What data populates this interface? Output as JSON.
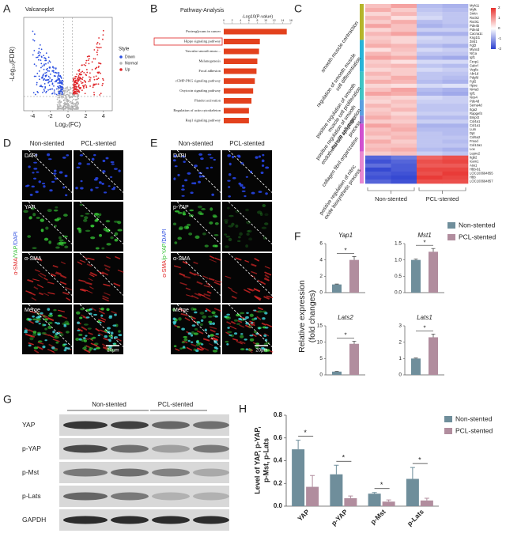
{
  "panel_labels": [
    "A",
    "B",
    "C",
    "D",
    "E",
    "F",
    "G",
    "H"
  ],
  "volcano": {
    "type": "scatter",
    "title": "Valcanoplot",
    "xlabel": "Log₂(FC)",
    "ylabel": "-Log₁₀(FDR)",
    "xlim": [
      -5,
      5
    ],
    "xticks": [
      -4,
      -2,
      0,
      2,
      4
    ],
    "legend_title": "Style",
    "series": [
      {
        "name": "Down",
        "color": "#2b4fe0"
      },
      {
        "name": "Normal",
        "color": "#b5b5b5"
      },
      {
        "name": "Up",
        "color": "#e0262a"
      }
    ]
  },
  "pathway": {
    "type": "bar",
    "title": "Pathway-Analysis",
    "xlabel": "-Log10(P-value)",
    "categories": [
      "Proteoglycans in cancer",
      "Hippo signaling pathway",
      "Vascular smooth musc...",
      "Melanogenesis",
      "Focal adhesion",
      "cGMP-PKG signaling pathway",
      "Oxytocin signaling pathway",
      "Platelet activation",
      "Regulation of actin cytoskeleton",
      "Rap1 signaling pathway"
    ],
    "values": [
      15,
      8.6,
      8.4,
      8.0,
      7.8,
      7.4,
      7.0,
      6.6,
      6.0,
      6.0
    ],
    "color": "#e3411d",
    "xlim": [
      0,
      16
    ],
    "xticks": [
      0,
      2,
      4,
      6,
      8,
      10,
      12,
      14,
      16
    ],
    "highlight": 1
  },
  "heatmap": {
    "type": "heatmap",
    "columns": [
      "Non-stented",
      "PCL-stented"
    ],
    "zlim": [
      -2,
      2
    ],
    "colorbar_ticks": [
      2,
      1,
      0,
      -1,
      -2
    ],
    "colors": [
      "#2b3fd0",
      "#ffffff",
      "#e8312d"
    ],
    "groups": [
      {
        "label": [
          "smooth muscle contraction"
        ],
        "color": "#b5b52a",
        "genes": [
          "Myh11",
          "Mylk",
          "Smtn",
          "Rock2",
          "Rock1",
          "Pde4b",
          "Pde4d",
          "Cacna1c",
          "Kng1l1"
        ],
        "values": [
          [
            0.6,
            0.9,
            -0.7,
            -0.8
          ],
          [
            0.8,
            0.5,
            -0.6,
            -0.7
          ],
          [
            0.4,
            0.7,
            -0.5,
            -0.6
          ],
          [
            0.7,
            0.3,
            -0.4,
            -0.6
          ],
          [
            0.5,
            0.8,
            -0.7,
            -0.6
          ],
          [
            0.9,
            0.6,
            -0.8,
            -0.7
          ],
          [
            0.4,
            0.6,
            -0.5,
            -0.5
          ],
          [
            0.7,
            0.9,
            -0.8,
            -0.8
          ],
          [
            0.5,
            0.4,
            -0.4,
            -0.5
          ]
        ]
      },
      {
        "label": [
          "regulation of smooth muscle",
          "cell differentiation"
        ],
        "color": "#28b4d8",
        "genes": [
          "Zeb1",
          "Fgf2",
          "Myocd",
          "Nr1a",
          "Igf1",
          "Fzxp1",
          "Calcrl",
          "Vegfa"
        ],
        "values": [
          [
            0.6,
            0.4,
            -0.5,
            -0.5
          ],
          [
            0.8,
            0.7,
            -0.7,
            -0.8
          ],
          [
            0.3,
            0.6,
            -0.4,
            -0.5
          ],
          [
            0.7,
            0.5,
            -0.6,
            -0.6
          ],
          [
            0.9,
            0.8,
            -0.8,
            -0.9
          ],
          [
            0.5,
            0.3,
            -0.4,
            -0.4
          ],
          [
            0.6,
            0.7,
            -0.6,
            -0.7
          ],
          [
            0.4,
            0.5,
            -0.4,
            -0.5
          ]
        ]
      },
      {
        "label": [
          "positive regulation of smooth",
          "muscle cell proliferation"
        ],
        "color": "#3fc4c4",
        "genes": [
          "Abr1d",
          "Pdgfd",
          "Fgf2",
          "Hpse",
          "Nr4a3",
          "Igf1",
          "Nos4"
        ],
        "values": [
          [
            0.7,
            0.5,
            -0.6,
            -0.6
          ],
          [
            0.5,
            0.8,
            -0.6,
            -0.7
          ],
          [
            0.8,
            0.7,
            -0.7,
            -0.8
          ],
          [
            0.4,
            0.3,
            -0.4,
            -0.3
          ],
          [
            0.6,
            0.9,
            -0.7,
            -0.8
          ],
          [
            0.9,
            0.8,
            -0.8,
            -0.9
          ],
          [
            0.5,
            0.4,
            -0.4,
            -0.5
          ]
        ]
      },
      {
        "label": [
          "positive regulation of smooth",
          "muscle cell migration"
        ],
        "color": "#5aa0e0",
        "genes": [
          "Pde4d",
          "Sema4d",
          "Itga2",
          "Rapgef4"
        ],
        "values": [
          [
            0.4,
            0.6,
            -0.5,
            -0.5
          ],
          [
            0.7,
            0.5,
            -0.6,
            -0.6
          ],
          [
            0.5,
            0.7,
            -0.6,
            -0.6
          ],
          [
            0.6,
            0.4,
            -0.5,
            -0.5
          ]
        ]
      },
      {
        "label": [
          "endothelial cell apoptotic",
          "process"
        ],
        "color": "#8a78d8",
        "genes": [
          "Bmpr2",
          "Col4a1"
        ],
        "values": [
          [
            0.8,
            0.6,
            -0.7,
            -0.7
          ],
          [
            0.5,
            0.5,
            -0.5,
            -0.5
          ]
        ]
      },
      {
        "label": [
          "collagen fibril organization"
        ],
        "color": "#d050d0",
        "genes": [
          "Col1a1",
          "Lum",
          "Dpt",
          "Col5a2",
          "Fmod",
          "Col12a1",
          "Lox"
        ],
        "values": [
          [
            0.9,
            0.7,
            -0.8,
            -0.8
          ],
          [
            0.6,
            0.8,
            -0.7,
            -0.7
          ],
          [
            0.7,
            0.6,
            -0.6,
            -0.7
          ],
          [
            0.5,
            0.7,
            -0.6,
            -0.6
          ],
          [
            0.8,
            0.5,
            -0.6,
            -0.7
          ],
          [
            0.6,
            0.6,
            -0.6,
            -0.6
          ],
          [
            0.7,
            0.8,
            -0.7,
            -0.8
          ]
        ]
      },
      {
        "label": [
          "positive regulation of nitric",
          "oxide biosynthetic process"
        ],
        "color": "#e888d0",
        "genes": [
          "Lepre2",
          "Itgb2",
          "Icam1",
          "Ass1",
          "Hbb-b1",
          "LOC103694855",
          "Hbb",
          "LOC103694857"
        ],
        "values": [
          [
            0.5,
            0.6,
            -0.5,
            -0.6
          ],
          [
            -1.6,
            -1.4,
            1.5,
            1.7
          ],
          [
            -1.8,
            -1.6,
            1.7,
            1.8
          ],
          [
            -1.5,
            -1.7,
            1.6,
            1.6
          ],
          [
            -1.9,
            -1.7,
            1.8,
            1.8
          ],
          [
            -1.7,
            -1.8,
            1.7,
            1.9
          ],
          [
            -1.8,
            -1.9,
            1.9,
            1.8
          ],
          [
            -1.6,
            -1.8,
            1.7,
            1.7
          ]
        ]
      }
    ]
  },
  "stain_d": {
    "columns": [
      "Non-stented",
      "PCL-stented"
    ],
    "rows": [
      "DAPI",
      "YAP",
      "α-SMA",
      "Merge"
    ],
    "side_label": [
      "α-SMA",
      "/YAP",
      "/DAPI"
    ],
    "side_colors": [
      "#e02020",
      "#30c030",
      "#3050e0"
    ],
    "scale_bar": "20μm"
  },
  "stain_e": {
    "columns": [
      "Non-stented",
      "PCL-stented"
    ],
    "rows": [
      "DAPI",
      "p-YAP",
      "α-SMA",
      "Merge"
    ],
    "side_label": [
      "α-SMA",
      "/p-YAP",
      "/DAPI"
    ],
    "side_colors": [
      "#e02020",
      "#30c030",
      "#3050e0"
    ],
    "scale_bar": "20μm"
  },
  "expression": {
    "type": "bar",
    "ylabel": [
      "Relative expression",
      "(fold changes)"
    ],
    "series": [
      {
        "name": "Non-stented",
        "color": "#6f8e9b"
      },
      {
        "name": "PCL-stented",
        "color": "#b18d9e"
      }
    ],
    "panels": [
      {
        "title": "Yap1",
        "values": [
          1,
          4.0
        ],
        "errors": [
          0.05,
          0.4
        ],
        "ylim": [
          0,
          6
        ],
        "yticks": [
          0,
          2,
          4,
          6
        ],
        "annotation": "*"
      },
      {
        "title": "Mst1",
        "values": [
          1.0,
          1.25
        ],
        "errors": [
          0.03,
          0.1
        ],
        "ylim": [
          0,
          1.5
        ],
        "yticks": [
          {
            "value": 0,
            "label": "0.0"
          },
          {
            "value": 0.5,
            "label": "0.5"
          },
          {
            "value": 1,
            "label": "1.0"
          },
          {
            "value": 1.5,
            "label": "1.5"
          }
        ],
        "annotation": "*"
      },
      {
        "title": "Lats2",
        "values": [
          1,
          9.5
        ],
        "errors": [
          0.1,
          0.8
        ],
        "ylim": [
          0,
          15
        ],
        "yticks": [
          0,
          5,
          10,
          15
        ],
        "annotation": "*"
      },
      {
        "title": "Lats1",
        "values": [
          1,
          2.3
        ],
        "errors": [
          0.03,
          0.2
        ],
        "ylim": [
          0,
          3
        ],
        "yticks": [
          0,
          1,
          2,
          3
        ],
        "annotation": "*"
      }
    ]
  },
  "blot": {
    "rows": [
      "YAP",
      "p-YAP",
      "p-Mst",
      "p-Lats",
      "GAPDH"
    ],
    "columns": [
      "Non-stented",
      "PCL-stented"
    ]
  },
  "levels": {
    "type": "bar",
    "ylabel": [
      "Level of YAP, p-YAP,",
      "p-Mst, p-Lats"
    ],
    "categories": [
      "YAP",
      "p-YAP",
      "p-Mst",
      "p-Lats"
    ],
    "series": [
      {
        "name": "Non-stented",
        "color": "#6f8e9b",
        "values": [
          0.5,
          0.28,
          0.11,
          0.24
        ],
        "errors": [
          0.08,
          0.08,
          0.01,
          0.1
        ]
      },
      {
        "name": "PCL-stented",
        "color": "#b18d9e",
        "values": [
          0.17,
          0.07,
          0.04,
          0.05
        ],
        "errors": [
          0.1,
          0.02,
          0.015,
          0.02
        ]
      }
    ],
    "ylim": [
      0,
      0.8
    ],
    "yticks": [
      {
        "value": 0,
        "label": "0.0"
      },
      {
        "value": 0.2,
        "label": "0.2"
      },
      {
        "value": 0.4,
        "label": "0.4"
      },
      {
        "value": 0.6,
        "label": "0.6"
      },
      {
        "value": 0.8,
        "label": "0.8"
      }
    ],
    "annotations": [
      "*",
      "*",
      "*",
      "*"
    ]
  }
}
